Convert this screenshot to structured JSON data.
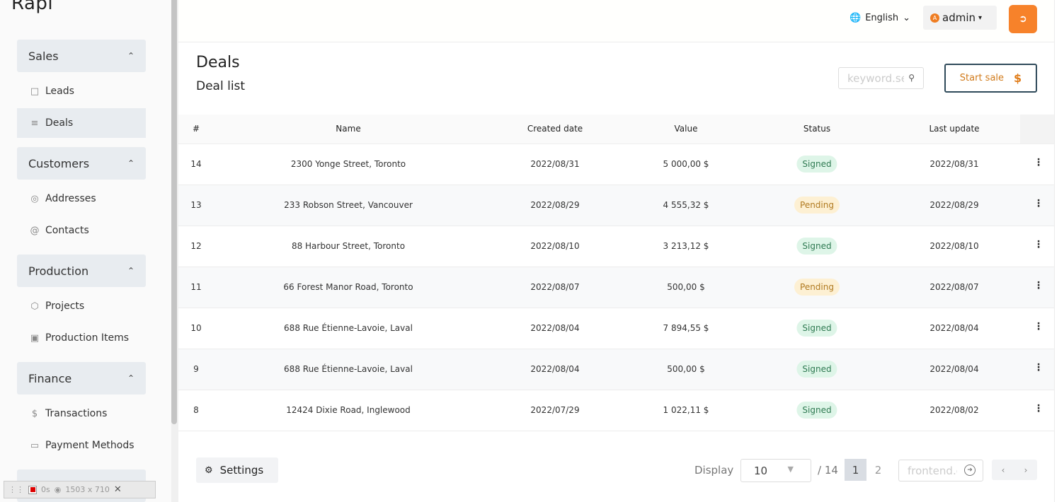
{
  "app": {
    "logo": "Rapi"
  },
  "sidebar": {
    "sections": [
      {
        "label": "Sales",
        "items": [
          {
            "label": "Leads",
            "icon": "book-icon"
          },
          {
            "label": "Deals",
            "icon": "list-icon",
            "active": true
          }
        ]
      },
      {
        "label": "Customers",
        "items": [
          {
            "label": "Addresses",
            "icon": "location-pin-icon"
          },
          {
            "label": "Contacts",
            "icon": "at-sign-icon"
          }
        ]
      },
      {
        "label": "Production",
        "items": [
          {
            "label": "Projects",
            "icon": "cube-icon"
          },
          {
            "label": "Production Items",
            "icon": "truck-icon"
          }
        ]
      },
      {
        "label": "Finance",
        "items": [
          {
            "label": "Transactions",
            "icon": "dollar-icon"
          },
          {
            "label": "Payment Methods",
            "icon": "credit-card-icon"
          }
        ]
      }
    ]
  },
  "topbar": {
    "language": "English",
    "user": "admin",
    "avatar_letter": "A"
  },
  "page": {
    "title": "Deals",
    "subtitle": "Deal list",
    "search_placeholder": "keyword.search",
    "start_sale_label": "Start sale",
    "start_sale_symbol": "$"
  },
  "table": {
    "headers": {
      "id": "#",
      "name": "Name",
      "created": "Created date",
      "value": "Value",
      "status": "Status",
      "updated": "Last update"
    },
    "rows": [
      {
        "id": "14",
        "name": "2300 Yonge Street, Toronto",
        "created": "2022/08/31",
        "value": "5 000,00 $",
        "status": "Signed",
        "updated": "2022/08/31"
      },
      {
        "id": "13",
        "name": "233 Robson Street, Vancouver",
        "created": "2022/08/29",
        "value": "4 555,32 $",
        "status": "Pending",
        "updated": "2022/08/29"
      },
      {
        "id": "12",
        "name": "88 Harbour Street, Toronto",
        "created": "2022/08/10",
        "value": "3 213,12 $",
        "status": "Signed",
        "updated": "2022/08/10"
      },
      {
        "id": "11",
        "name": "66 Forest Manor Road, Toronto",
        "created": "2022/08/07",
        "value": "500,00 $",
        "status": "Pending",
        "updated": "2022/08/07"
      },
      {
        "id": "10",
        "name": "688 Rue Étienne-Lavoie, Laval",
        "created": "2022/08/04",
        "value": "7 894,55 $",
        "status": "Signed",
        "updated": "2022/08/04"
      },
      {
        "id": "9",
        "name": "688 Rue Étienne-Lavoie, Laval",
        "created": "2022/08/04",
        "value": "500,00 $",
        "status": "Signed",
        "updated": "2022/08/04"
      },
      {
        "id": "8",
        "name": "12424 Dixie Road, Inglewood",
        "created": "2022/07/29",
        "value": "1 022,11 $",
        "status": "Signed",
        "updated": "2022/08/02"
      }
    ]
  },
  "footer": {
    "settings_label": "Settings",
    "display_label": "Display",
    "page_size": "10",
    "total": "/ 14",
    "pages": [
      "1",
      "2"
    ],
    "current_page": "1",
    "goto_placeholder": "frontend.goto"
  },
  "recorder": {
    "time": "0s",
    "size": "1503 x 710"
  },
  "colors": {
    "accent": "#f7822a",
    "signed_bg": "#def5e8",
    "pending_bg": "#fdf0d3",
    "outline": "#2f4a5a"
  }
}
